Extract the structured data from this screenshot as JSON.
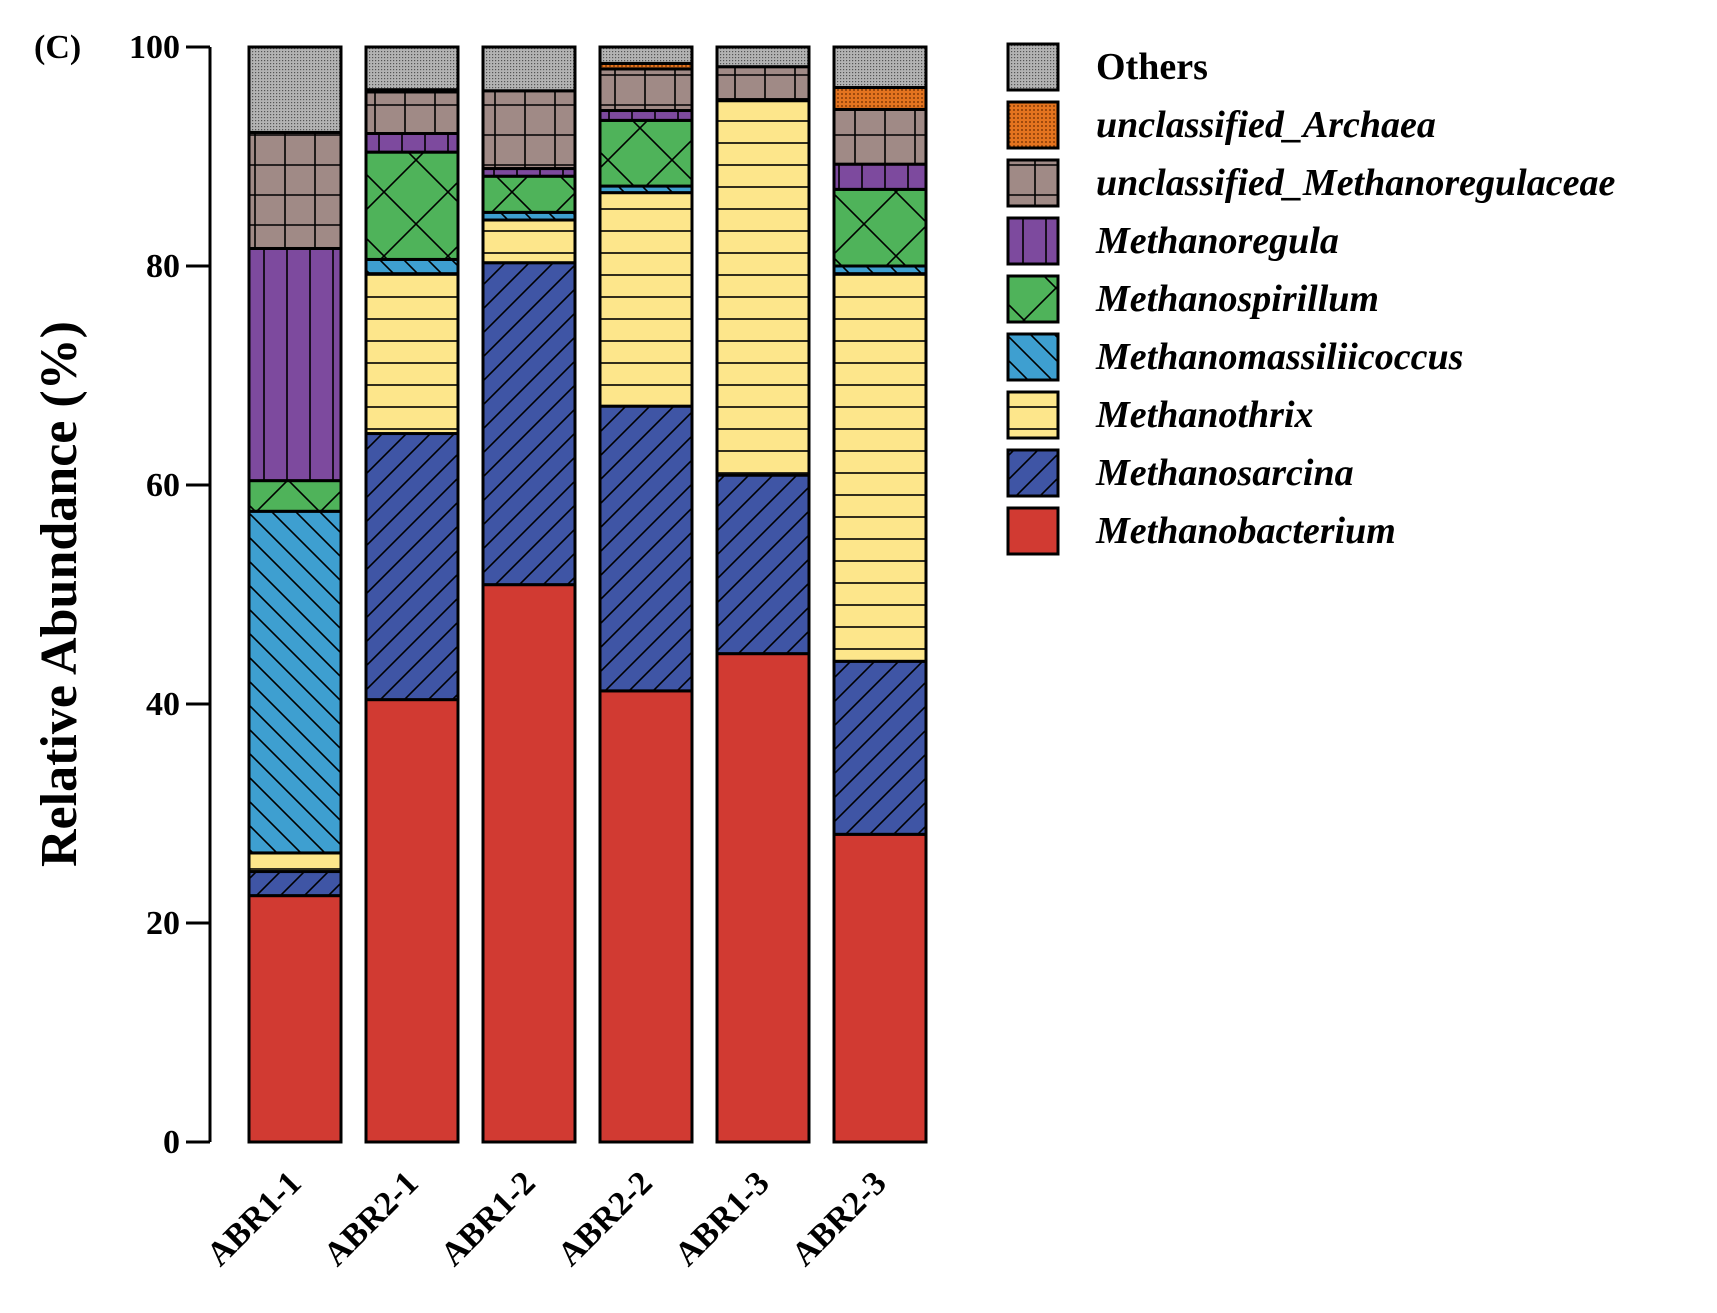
{
  "chart_data": {
    "type": "bar",
    "stacked": true,
    "panel_label": "(C)",
    "ylabel": "Relative Abundance (%)",
    "xlabel": "",
    "ylim": [
      0,
      100
    ],
    "yticks": [
      "0",
      "20",
      "40",
      "60",
      "80",
      "100"
    ],
    "legend_position": "right",
    "categories": [
      "ABR1-1",
      "ABR2-1",
      "ABR1-2",
      "ABR2-2",
      "ABR1-3",
      "ABR2-3"
    ],
    "series": [
      {
        "name": "Methanobacterium",
        "italic": true,
        "color": "#d13a32",
        "pattern": "none",
        "values": [
          22.5,
          40.4,
          50.9,
          41.2,
          44.6,
          28.1
        ]
      },
      {
        "name": "Methanosarcina",
        "italic": true,
        "color": "#3f55a5",
        "pattern": "diagonal",
        "values": [
          2.2,
          24.3,
          29.4,
          26.0,
          16.3,
          15.8
        ]
      },
      {
        "name": "Methanothrix",
        "italic": true,
        "color": "#fde68b",
        "pattern": "horizontal",
        "values": [
          1.7,
          14.6,
          3.9,
          19.5,
          34.2,
          35.4
        ]
      },
      {
        "name": "Methanomassiliicoccus",
        "italic": true,
        "color": "#3e9fd0",
        "pattern": "backdiagonal",
        "values": [
          31.2,
          1.3,
          0.7,
          0.6,
          0.0,
          0.7
        ]
      },
      {
        "name": "Methanospirillum",
        "italic": true,
        "color": "#4fb35a",
        "pattern": "crossdiag",
        "values": [
          2.8,
          9.8,
          3.3,
          6.0,
          0.0,
          7.0
        ]
      },
      {
        "name": "Methanoregula",
        "italic": true,
        "color": "#7d4a9e",
        "pattern": "vertical",
        "values": [
          21.2,
          1.7,
          0.7,
          0.9,
          0.1,
          2.3
        ]
      },
      {
        "name": "unclassified_Methanoregulaceae",
        "italic": true,
        "color": "#a08a86",
        "pattern": "grid",
        "values": [
          10.6,
          3.8,
          7.1,
          3.8,
          3.0,
          5.0
        ]
      },
      {
        "name": "unclassified_Archaea",
        "italic": true,
        "color": "#e4741f",
        "pattern": "dots",
        "values": [
          0.0,
          0.2,
          0.0,
          0.5,
          0.0,
          2.0
        ]
      },
      {
        "name": "Others",
        "italic": false,
        "color": "#b3b3b3",
        "pattern": "stipple",
        "values": [
          7.8,
          3.9,
          4.0,
          1.5,
          1.8,
          3.7
        ]
      }
    ]
  }
}
